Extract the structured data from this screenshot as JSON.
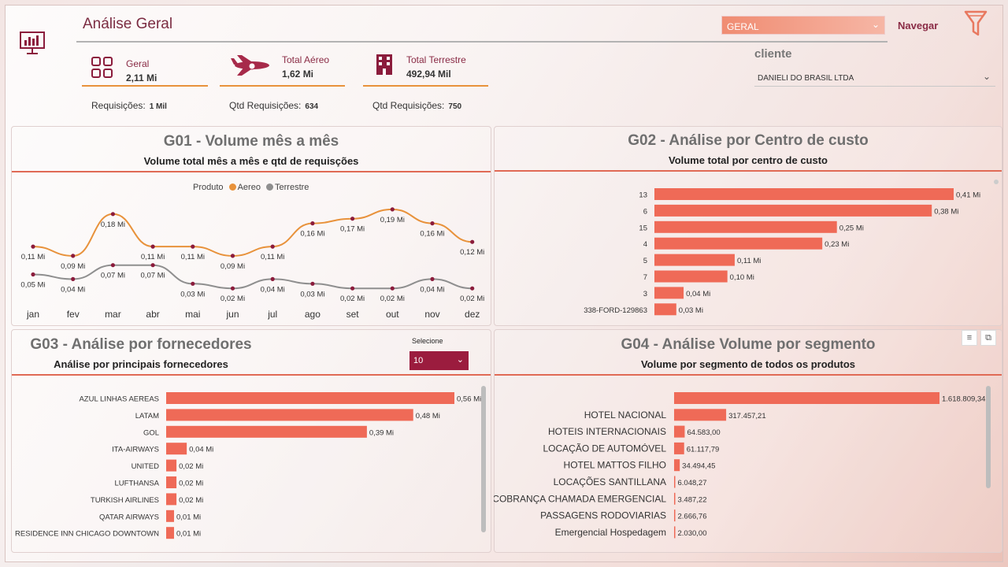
{
  "header": {
    "title": "Análise Geral",
    "filter_value": "GERAL",
    "navigate_label": "Navegar",
    "client_label": "cliente",
    "client_value": "DANIELI DO BRASIL LTDA"
  },
  "kpis": [
    {
      "label": "Geral",
      "value": "2,11 Mi",
      "req_label": "Requisições:",
      "req_value": "1 Mil"
    },
    {
      "label": "Total Aéreo",
      "value": "1,62 Mi",
      "req_label": "Qtd Requisições:",
      "req_value": "634"
    },
    {
      "label": "Total Terrestre",
      "value": "492,94 Mil",
      "req_label": "Qtd Requisições:",
      "req_value": "750"
    }
  ],
  "g01": {
    "title": "G01 - Volume mês a mês",
    "subtitle": "Volume total mês a mês e qtd de requisções",
    "legend_title": "Produto",
    "colors": {
      "aereo": "#e8923b",
      "terrestre": "#8f8f8f",
      "dot": "#8b1c3c"
    },
    "chart_data": {
      "type": "line",
      "categories": [
        "jan",
        "fev",
        "mar",
        "abr",
        "mai",
        "jun",
        "jul",
        "ago",
        "set",
        "out",
        "nov",
        "dez"
      ],
      "series": [
        {
          "name": "Aereo",
          "values": [
            0.11,
            0.09,
            0.18,
            0.11,
            0.11,
            0.09,
            0.11,
            0.16,
            0.17,
            0.19,
            0.16,
            0.12
          ],
          "labels": [
            "0,11 Mi",
            "0,09 Mi",
            "0,18 Mi",
            "0,11 Mi",
            "0,11 Mi",
            "0,09 Mi",
            "0,11 Mi",
            "0,16 Mi",
            "0,17 Mi",
            "0,19 Mi",
            "0,16 Mi",
            "0,12 Mi"
          ]
        },
        {
          "name": "Terrestre",
          "values": [
            0.05,
            0.04,
            0.07,
            0.07,
            0.03,
            0.02,
            0.04,
            0.03,
            0.02,
            0.02,
            0.04,
            0.02
          ],
          "labels": [
            "0,05 Mi",
            "0,04 Mi",
            "0,07 Mi",
            "0,07 Mi",
            "0,03 Mi",
            "0,02 Mi",
            "0,04 Mi",
            "0,03 Mi",
            "0,02 Mi",
            "0,02 Mi",
            "0,04 Mi",
            "0,02 Mi"
          ]
        }
      ],
      "ylim": [
        0,
        0.2
      ]
    }
  },
  "g02": {
    "title": "G02 - Análise por Centro de custo",
    "subtitle": "Volume total por centro de custo",
    "chart_data": {
      "type": "bar",
      "orientation": "horizontal",
      "categories": [
        "13",
        "6",
        "15",
        "4",
        "5",
        "7",
        "3",
        "338-FORD-129863"
      ],
      "values": [
        0.41,
        0.38,
        0.25,
        0.23,
        0.11,
        0.1,
        0.04,
        0.03
      ],
      "labels": [
        "0,41 Mi",
        "0,38 Mi",
        "0,25 Mi",
        "0,23 Mi",
        "0,11 Mi",
        "0,10 Mi",
        "0,04 Mi",
        "0,03 Mi"
      ],
      "xlim": [
        0,
        0.41
      ]
    }
  },
  "g03": {
    "title": "G03 - Análise por fornecedores",
    "subtitle": "Análise por principais fornecedores",
    "select_label": "Selecione",
    "select_value": "10",
    "chart_data": {
      "type": "bar",
      "orientation": "horizontal",
      "categories": [
        "AZUL LINHAS AEREAS",
        "LATAM",
        "GOL",
        "ITA-AIRWAYS",
        "UNITED",
        "LUFTHANSA",
        "TURKISH AIRLINES",
        "QATAR AIRWAYS",
        "RESIDENCE INN CHICAGO DOWNTOWN"
      ],
      "values": [
        0.56,
        0.48,
        0.39,
        0.04,
        0.02,
        0.02,
        0.02,
        0.01,
        0.01
      ],
      "labels": [
        "0,56 Mi",
        "0,48 Mi",
        "0,39 Mi",
        "0,04 Mi",
        "0,02 Mi",
        "0,02 Mi",
        "0,02 Mi",
        "0,01 Mi",
        "0,01 Mi"
      ],
      "xlim": [
        0,
        0.56
      ]
    }
  },
  "g04": {
    "title": "G04 - Análise Volume por segmento",
    "subtitle": "Volume por segmento de todos os produtos",
    "chart_data": {
      "type": "bar",
      "orientation": "horizontal",
      "categories": [
        "",
        "HOTEL NACIONAL",
        "HOTEIS INTERNACIONAIS",
        "LOCAÇÃO DE AUTOMÓVEL",
        "HOTEL MATTOS FILHO",
        "LOCAÇÕES SANTILLANA",
        "COBRANÇA CHAMADA EMERGENCIAL",
        "PASSAGENS RODOVIARIAS",
        "Emergencial Hospedagem"
      ],
      "values": [
        1618809.34,
        317457.21,
        64583.0,
        61117.79,
        34494.45,
        6048.27,
        3487.22,
        2666.76,
        2030.0
      ],
      "labels": [
        "1.618.809,34",
        "317.457,21",
        "64.583,00",
        "61.117,79",
        "34.494,45",
        "6.048,27",
        "3.487,22",
        "2.666,76",
        "2.030,00"
      ],
      "xlim": [
        0,
        1618809.34
      ]
    }
  },
  "bar_color": "#ef6a57"
}
